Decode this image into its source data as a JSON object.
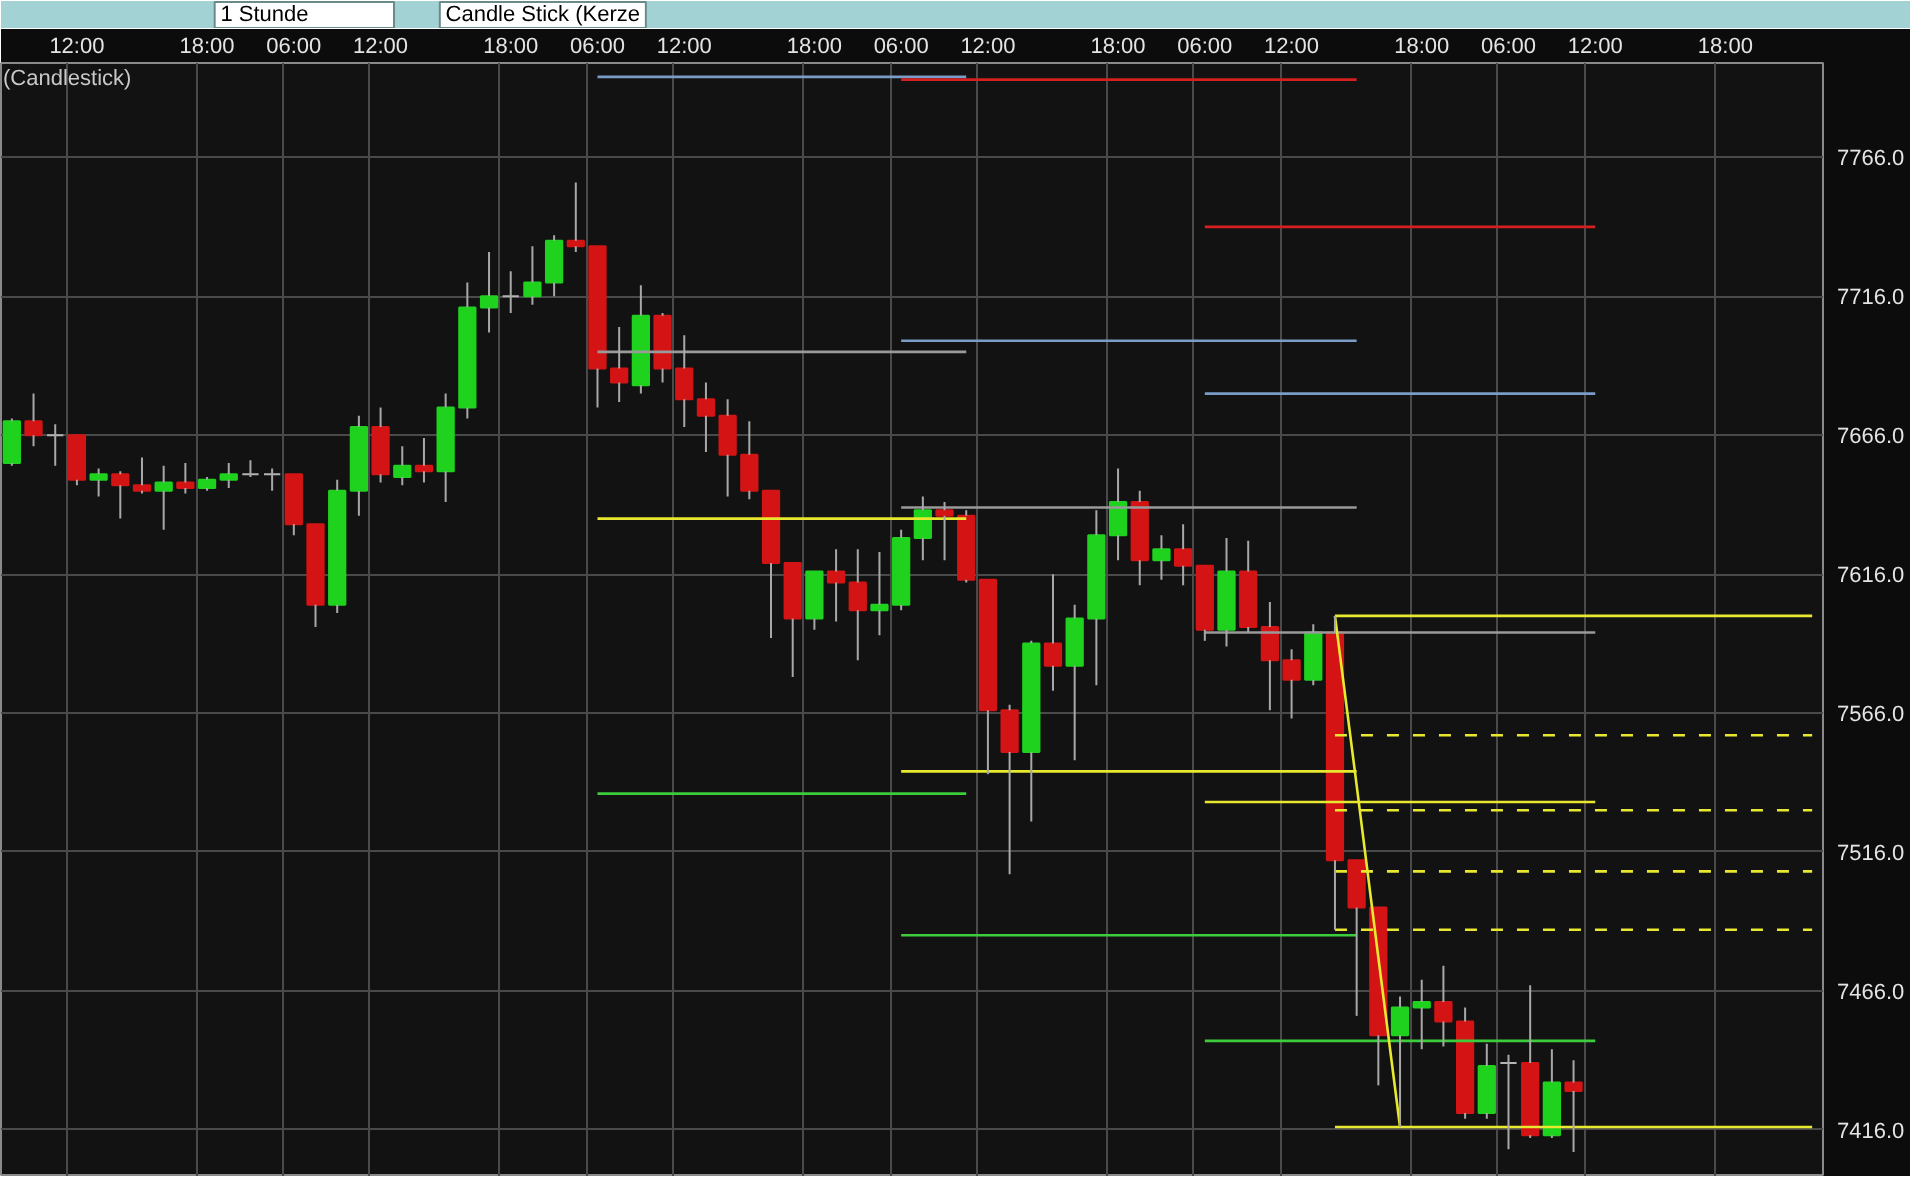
{
  "chart_data": {
    "type": "candlestick",
    "title": "(Candlestick)",
    "annotations": [
      "1 Stunde",
      "Candle Stick (Kerze"
    ],
    "categories": [
      null,
      null,
      null,
      "12:00",
      null,
      null,
      null,
      null,
      null,
      "18:00",
      null,
      null,
      null,
      "06:00",
      null,
      null,
      null,
      "12:00",
      null,
      null,
      null,
      null,
      null,
      "18:00",
      null,
      null,
      null,
      "06:00",
      null,
      null,
      null,
      "12:00",
      null,
      null,
      null,
      null,
      null,
      "18:00",
      null,
      null,
      null,
      "06:00",
      null,
      null,
      null,
      "12:00",
      null,
      null,
      null,
      null,
      null,
      "18:00",
      null,
      null,
      null,
      "06:00",
      null,
      null,
      null,
      "12:00",
      null,
      null,
      null,
      null,
      null,
      "18:00",
      null,
      null,
      null,
      "06:00",
      null,
      null,
      null,
      "12:00",
      null,
      null,
      null,
      null,
      null,
      "18:00",
      null,
      null,
      null,
      null
    ],
    "ohlc": [
      [
        7656,
        7672,
        7655,
        7671
      ],
      [
        7671,
        7681,
        7662,
        7666
      ],
      [
        7666,
        7670,
        7655,
        7666
      ],
      [
        7666,
        7666,
        7648,
        7650
      ],
      [
        7650,
        7654,
        7644,
        7652
      ],
      [
        7652,
        7653,
        7636,
        7648
      ],
      [
        7648,
        7658,
        7645,
        7646
      ],
      [
        7646,
        7655,
        7632,
        7649
      ],
      [
        7649,
        7656,
        7645,
        7647
      ],
      [
        7647,
        7651,
        7646,
        7650
      ],
      [
        7650,
        7656,
        7647,
        7652
      ],
      [
        7652,
        7657,
        7651,
        7652
      ],
      [
        7652,
        7654,
        7646,
        7652
      ],
      [
        7652,
        7652,
        7630,
        7634
      ],
      [
        7634,
        7634,
        7597,
        7605
      ],
      [
        7605,
        7650,
        7602,
        7646
      ],
      [
        7646,
        7673,
        7637,
        7669
      ],
      [
        7669,
        7676,
        7649,
        7652
      ],
      [
        7651,
        7662,
        7648,
        7655
      ],
      [
        7655,
        7665,
        7649,
        7653
      ],
      [
        7653,
        7681,
        7642,
        7676
      ],
      [
        7676,
        7721,
        7672,
        7712
      ],
      [
        7712,
        7732,
        7703,
        7716
      ],
      [
        7716,
        7725,
        7710,
        7716
      ],
      [
        7716,
        7734,
        7713,
        7721
      ],
      [
        7721,
        7738,
        7716,
        7736
      ],
      [
        7736,
        7757,
        7732,
        7734
      ],
      [
        7734,
        7734,
        7676,
        7690
      ],
      [
        7690,
        7705,
        7678,
        7685
      ],
      [
        7684,
        7720,
        7681,
        7709
      ],
      [
        7709,
        7710,
        7685,
        7690
      ],
      [
        7690,
        7702,
        7669,
        7679
      ],
      [
        7679,
        7685,
        7660,
        7673
      ],
      [
        7673,
        7679,
        7644,
        7659
      ],
      [
        7659,
        7671,
        7643,
        7646
      ],
      [
        7646,
        7646,
        7593,
        7620
      ],
      [
        7620,
        7620,
        7579,
        7600
      ],
      [
        7600,
        7617,
        7596,
        7617
      ],
      [
        7617,
        7625,
        7599,
        7613
      ],
      [
        7613,
        7625,
        7585,
        7603
      ],
      [
        7603,
        7624,
        7594,
        7605
      ],
      [
        7605,
        7632,
        7603,
        7629
      ],
      [
        7629,
        7644,
        7621,
        7639
      ],
      [
        7639,
        7642,
        7621,
        7637
      ],
      [
        7637,
        7639,
        7613,
        7614
      ],
      [
        7614,
        7614,
        7544,
        7567
      ],
      [
        7567,
        7569,
        7508,
        7552
      ],
      [
        7552,
        7592,
        7527,
        7591
      ],
      [
        7591,
        7616,
        7574,
        7583
      ],
      [
        7583,
        7605,
        7549,
        7600
      ],
      [
        7600,
        7639,
        7576,
        7630
      ],
      [
        7630,
        7654,
        7621,
        7642
      ],
      [
        7642,
        7646,
        7612,
        7621
      ],
      [
        7621,
        7630,
        7614,
        7625
      ],
      [
        7625,
        7634,
        7612,
        7619
      ],
      [
        7619,
        7619,
        7592,
        7596
      ],
      [
        7596,
        7629,
        7590,
        7617
      ],
      [
        7617,
        7628,
        7595,
        7597
      ],
      [
        7597,
        7606,
        7567,
        7585
      ],
      [
        7585,
        7589,
        7564,
        7578
      ],
      [
        7578,
        7598,
        7576,
        7595
      ],
      [
        7595,
        7601,
        7488,
        7513
      ],
      [
        7513,
        7513,
        7457,
        7496
      ],
      [
        7496,
        7496,
        7432,
        7450
      ],
      [
        7450,
        7464,
        7417,
        7460
      ],
      [
        7460,
        7470,
        7445,
        7462
      ],
      [
        7462,
        7475,
        7446,
        7455
      ],
      [
        7455,
        7460,
        7420,
        7422
      ],
      [
        7422,
        7447,
        7420,
        7439
      ],
      [
        7440,
        7443,
        7409,
        7440
      ],
      [
        7440,
        7468,
        7413,
        7414
      ],
      [
        7414,
        7445,
        7413,
        7433
      ],
      [
        7433,
        7441,
        7408,
        7430
      ],
      null,
      null,
      null,
      null,
      null,
      null,
      null,
      null,
      null,
      null,
      null
    ],
    "colors": [
      "#1ed21e",
      "#d41414",
      "#b4b4b4",
      "#d41414",
      "#1ed21e",
      "#d41414",
      "#d41414",
      "#1ed21e",
      "#d41414",
      "#1ed21e",
      "#1ed21e",
      "#b4b4b4",
      "#b4b4b4",
      "#d41414",
      "#d41414",
      "#1ed21e",
      "#1ed21e",
      "#d41414",
      "#1ed21e",
      "#d41414",
      "#1ed21e",
      "#1ed21e",
      "#1ed21e",
      "#b4b4b4",
      "#1ed21e",
      "#1ed21e",
      "#d41414",
      "#d41414",
      "#d41414",
      "#1ed21e",
      "#d41414",
      "#d41414",
      "#d41414",
      "#d41414",
      "#d41414",
      "#d41414",
      "#d41414",
      "#1ed21e",
      "#d41414",
      "#d41414",
      "#1ed21e",
      "#1ed21e",
      "#1ed21e",
      "#d41414",
      "#d41414",
      "#d41414",
      "#d41414",
      "#1ed21e",
      "#d41414",
      "#1ed21e",
      "#1ed21e",
      "#1ed21e",
      "#d41414",
      "#1ed21e",
      "#d41414",
      "#d41414",
      "#1ed21e",
      "#d41414",
      "#d41414",
      "#d41414",
      "#1ed21e",
      "#d41414",
      "#d41414",
      "#d41414",
      "#1ed21e",
      "#1ed21e",
      "#d41414",
      "#d41414",
      "#1ed21e",
      "#b4b4b4",
      "#d41414",
      "#1ed21e",
      "#d41414",
      null,
      null,
      null,
      null,
      null,
      null,
      null,
      null,
      null,
      null,
      null
    ],
    "series": [
      {
        "type": "line",
        "color": "#7a9cc6",
        "values": [
          null,
          null,
          null,
          null,
          null,
          null,
          null,
          null,
          null,
          null,
          null,
          null,
          null,
          null,
          null,
          null,
          null,
          null,
          null,
          null,
          null,
          null,
          null,
          null,
          null,
          null,
          null,
          7795,
          7795,
          7795,
          7795,
          7795,
          7795,
          7795,
          7795,
          7795,
          7795,
          7795,
          7795,
          7795,
          7795,
          7795,
          7795,
          7795,
          7795,
          null,
          null,
          null,
          null,
          null,
          null,
          null,
          null,
          null,
          null,
          null,
          null,
          null,
          null,
          null,
          null,
          null,
          null,
          null,
          null,
          null,
          null,
          null,
          null,
          null,
          null,
          null,
          null,
          null,
          null,
          null,
          null,
          null,
          null,
          null,
          null,
          null,
          null,
          null
        ]
      },
      {
        "type": "line",
        "color": "#9a9a9a",
        "values": [
          null,
          null,
          null,
          null,
          null,
          null,
          null,
          null,
          null,
          null,
          null,
          null,
          null,
          null,
          null,
          null,
          null,
          null,
          null,
          null,
          null,
          null,
          null,
          null,
          null,
          null,
          null,
          7696,
          7696,
          7696,
          7696,
          7696,
          7696,
          7696,
          7696,
          7696,
          7696,
          7696,
          7696,
          7696,
          7696,
          7696,
          7696,
          7696,
          7696,
          null,
          null,
          null,
          null,
          null,
          null,
          null,
          null,
          null,
          null,
          null,
          null,
          null,
          null,
          null,
          null,
          null,
          null,
          null,
          null,
          null,
          null,
          null,
          null,
          null,
          null,
          null,
          null,
          null,
          null,
          null,
          null,
          null,
          null,
          null,
          null,
          null,
          null,
          null
        ]
      },
      {
        "type": "line",
        "color": "#e8e830",
        "values": [
          null,
          null,
          null,
          null,
          null,
          null,
          null,
          null,
          null,
          null,
          null,
          null,
          null,
          null,
          null,
          null,
          null,
          null,
          null,
          null,
          null,
          null,
          null,
          null,
          null,
          null,
          null,
          7636,
          7636,
          7636,
          7636,
          7636,
          7636,
          7636,
          7636,
          7636,
          7636,
          7636,
          7636,
          7636,
          7636,
          7636,
          7636,
          7636,
          7636,
          null,
          null,
          null,
          null,
          null,
          null,
          null,
          null,
          null,
          null,
          null,
          null,
          null,
          null,
          null,
          null,
          null,
          null,
          null,
          null,
          null,
          null,
          null,
          null,
          null,
          null,
          null,
          null,
          null,
          null,
          null,
          null,
          null,
          null,
          null,
          null,
          null,
          null,
          null
        ]
      },
      {
        "type": "line",
        "color": "#3ccc3c",
        "values": [
          null,
          null,
          null,
          null,
          null,
          null,
          null,
          null,
          null,
          null,
          null,
          null,
          null,
          null,
          null,
          null,
          null,
          null,
          null,
          null,
          null,
          null,
          null,
          null,
          null,
          null,
          null,
          7537,
          7537,
          7537,
          7537,
          7537,
          7537,
          7537,
          7537,
          7537,
          7537,
          7537,
          7537,
          7537,
          7537,
          7537,
          7537,
          7537,
          7537,
          null,
          null,
          null,
          null,
          null,
          null,
          null,
          null,
          null,
          null,
          null,
          null,
          null,
          null,
          null,
          null,
          null,
          null,
          null,
          null,
          null,
          null,
          null,
          null,
          null,
          null,
          null,
          null,
          null,
          null,
          null,
          null,
          null,
          null,
          null,
          null,
          null,
          null,
          null
        ]
      },
      {
        "type": "line",
        "color": "#d42020",
        "values": [
          null,
          null,
          null,
          null,
          null,
          null,
          null,
          null,
          null,
          null,
          null,
          null,
          null,
          null,
          null,
          null,
          null,
          null,
          null,
          null,
          null,
          null,
          null,
          null,
          null,
          null,
          null,
          null,
          null,
          null,
          null,
          null,
          null,
          null,
          null,
          null,
          null,
          null,
          null,
          null,
          null,
          7794,
          7794,
          7794,
          7794,
          7794,
          7794,
          7794,
          7794,
          7794,
          7794,
          7794,
          7794,
          7794,
          7794,
          7794,
          7794,
          7794,
          7794,
          7794,
          7794,
          7794,
          7794,
          null,
          null,
          null,
          null,
          null,
          null,
          null,
          null,
          null,
          null,
          null,
          null,
          null,
          null,
          null,
          null,
          null,
          null,
          null,
          null,
          null
        ]
      },
      {
        "type": "line",
        "color": "#7a9cc6",
        "values": [
          null,
          null,
          null,
          null,
          null,
          null,
          null,
          null,
          null,
          null,
          null,
          null,
          null,
          null,
          null,
          null,
          null,
          null,
          null,
          null,
          null,
          null,
          null,
          null,
          null,
          null,
          null,
          null,
          null,
          null,
          null,
          null,
          null,
          null,
          null,
          null,
          null,
          null,
          null,
          null,
          null,
          7700,
          7700,
          7700,
          7700,
          7700,
          7700,
          7700,
          7700,
          7700,
          7700,
          7700,
          7700,
          7700,
          7700,
          7700,
          7700,
          7700,
          7700,
          7700,
          7700,
          7700,
          7700,
          null,
          null,
          null,
          null,
          null,
          null,
          null,
          null,
          null,
          null,
          null,
          null,
          null,
          null,
          null,
          null,
          null,
          null,
          null,
          null,
          null
        ]
      },
      {
        "type": "line",
        "color": "#9a9a9a",
        "values": [
          null,
          null,
          null,
          null,
          null,
          null,
          null,
          null,
          null,
          null,
          null,
          null,
          null,
          null,
          null,
          null,
          null,
          null,
          null,
          null,
          null,
          null,
          null,
          null,
          null,
          null,
          null,
          null,
          null,
          null,
          null,
          null,
          null,
          null,
          null,
          null,
          null,
          null,
          null,
          null,
          null,
          7640,
          7640,
          7640,
          7640,
          7640,
          7640,
          7640,
          7640,
          7640,
          7640,
          7640,
          7640,
          7640,
          7640,
          7640,
          7640,
          7640,
          7640,
          7640,
          7640,
          7640,
          7640,
          null,
          null,
          null,
          null,
          null,
          null,
          null,
          null,
          null,
          null,
          null,
          null,
          null,
          null,
          null,
          null,
          null,
          null,
          null,
          null,
          null
        ]
      },
      {
        "type": "line",
        "color": "#e8e830",
        "values": [
          null,
          null,
          null,
          null,
          null,
          null,
          null,
          null,
          null,
          null,
          null,
          null,
          null,
          null,
          null,
          null,
          null,
          null,
          null,
          null,
          null,
          null,
          null,
          null,
          null,
          null,
          null,
          null,
          null,
          null,
          null,
          null,
          null,
          null,
          null,
          null,
          null,
          null,
          null,
          null,
          null,
          7545,
          7545,
          7545,
          7545,
          7545,
          7545,
          7545,
          7545,
          7545,
          7545,
          7545,
          7545,
          7545,
          7545,
          7545,
          7545,
          7545,
          7545,
          7545,
          7545,
          7545,
          7545,
          null,
          null,
          null,
          null,
          null,
          null,
          null,
          null,
          null,
          null,
          null,
          null,
          null,
          null,
          null,
          null,
          null,
          null,
          null,
          null,
          null
        ]
      },
      {
        "type": "line",
        "color": "#3ccc3c",
        "values": [
          null,
          null,
          null,
          null,
          null,
          null,
          null,
          null,
          null,
          null,
          null,
          null,
          null,
          null,
          null,
          null,
          null,
          null,
          null,
          null,
          null,
          null,
          null,
          null,
          null,
          null,
          null,
          null,
          null,
          null,
          null,
          null,
          null,
          null,
          null,
          null,
          null,
          null,
          null,
          null,
          null,
          7486,
          7486,
          7486,
          7486,
          7486,
          7486,
          7486,
          7486,
          7486,
          7486,
          7486,
          7486,
          7486,
          7486,
          7486,
          7486,
          7486,
          7486,
          7486,
          7486,
          7486,
          7486,
          null,
          null,
          null,
          null,
          null,
          null,
          null,
          null,
          null,
          null,
          null,
          null,
          null,
          null,
          null,
          null,
          null,
          null,
          null,
          null,
          null
        ]
      },
      {
        "type": "line",
        "color": "#d42020",
        "values": [
          null,
          null,
          null,
          null,
          null,
          null,
          null,
          null,
          null,
          null,
          null,
          null,
          null,
          null,
          null,
          null,
          null,
          null,
          null,
          null,
          null,
          null,
          null,
          null,
          null,
          null,
          null,
          null,
          null,
          null,
          null,
          null,
          null,
          null,
          null,
          null,
          null,
          null,
          null,
          null,
          null,
          null,
          null,
          null,
          null,
          null,
          null,
          null,
          null,
          null,
          null,
          null,
          null,
          null,
          null,
          7741,
          7741,
          7741,
          7741,
          7741,
          7741,
          7741,
          7741,
          7741,
          7741,
          7741,
          7741,
          7741,
          7741,
          7741,
          7741,
          7741,
          7741,
          7741,
          null,
          null,
          null,
          null,
          null,
          null,
          null,
          null,
          null,
          null
        ]
      },
      {
        "type": "line",
        "color": "#7a9cc6",
        "values": [
          null,
          null,
          null,
          null,
          null,
          null,
          null,
          null,
          null,
          null,
          null,
          null,
          null,
          null,
          null,
          null,
          null,
          null,
          null,
          null,
          null,
          null,
          null,
          null,
          null,
          null,
          null,
          null,
          null,
          null,
          null,
          null,
          null,
          null,
          null,
          null,
          null,
          null,
          null,
          null,
          null,
          null,
          null,
          null,
          null,
          null,
          null,
          null,
          null,
          null,
          null,
          null,
          null,
          null,
          null,
          7681,
          7681,
          7681,
          7681,
          7681,
          7681,
          7681,
          7681,
          7681,
          7681,
          7681,
          7681,
          7681,
          7681,
          7681,
          7681,
          7681,
          7681,
          7681,
          null,
          null,
          null,
          null,
          null,
          null,
          null,
          null,
          null,
          null
        ]
      },
      {
        "type": "line",
        "color": "#9a9a9a",
        "values": [
          null,
          null,
          null,
          null,
          null,
          null,
          null,
          null,
          null,
          null,
          null,
          null,
          null,
          null,
          null,
          null,
          null,
          null,
          null,
          null,
          null,
          null,
          null,
          null,
          null,
          null,
          null,
          null,
          null,
          null,
          null,
          null,
          null,
          null,
          null,
          null,
          null,
          null,
          null,
          null,
          null,
          null,
          null,
          null,
          null,
          null,
          null,
          null,
          null,
          null,
          null,
          null,
          null,
          null,
          null,
          7595,
          7595,
          7595,
          7595,
          7595,
          7595,
          7595,
          7595,
          7595,
          7595,
          7595,
          7595,
          7595,
          7595,
          7595,
          7595,
          7595,
          7595,
          7595,
          null,
          null,
          null,
          null,
          null,
          null,
          null,
          null,
          null,
          null
        ]
      },
      {
        "type": "line",
        "color": "#e8e830",
        "values": [
          null,
          null,
          null,
          null,
          null,
          null,
          null,
          null,
          null,
          null,
          null,
          null,
          null,
          null,
          null,
          null,
          null,
          null,
          null,
          null,
          null,
          null,
          null,
          null,
          null,
          null,
          null,
          null,
          null,
          null,
          null,
          null,
          null,
          null,
          null,
          null,
          null,
          null,
          null,
          null,
          null,
          null,
          null,
          null,
          null,
          null,
          null,
          null,
          null,
          null,
          null,
          null,
          null,
          null,
          null,
          7534,
          7534,
          7534,
          7534,
          7534,
          7534,
          7534,
          7534,
          7534,
          7534,
          7534,
          7534,
          7534,
          7534,
          7534,
          7534,
          7534,
          7534,
          7534,
          null,
          null,
          null,
          null,
          null,
          null,
          null,
          null,
          null,
          null
        ]
      },
      {
        "type": "line",
        "color": "#3ccc3c",
        "values": [
          null,
          null,
          null,
          null,
          null,
          null,
          null,
          null,
          null,
          null,
          null,
          null,
          null,
          null,
          null,
          null,
          null,
          null,
          null,
          null,
          null,
          null,
          null,
          null,
          null,
          null,
          null,
          null,
          null,
          null,
          null,
          null,
          null,
          null,
          null,
          null,
          null,
          null,
          null,
          null,
          null,
          null,
          null,
          null,
          null,
          null,
          null,
          null,
          null,
          null,
          null,
          null,
          null,
          null,
          null,
          7448,
          7448,
          7448,
          7448,
          7448,
          7448,
          7448,
          7448,
          7448,
          7448,
          7448,
          7448,
          7448,
          7448,
          7448,
          7448,
          7448,
          7448,
          7448,
          null,
          null,
          null,
          null,
          null,
          null,
          null,
          null,
          null,
          null
        ]
      },
      {
        "type": "line",
        "color": "#e8e830",
        "values": [
          null,
          null,
          null,
          null,
          null,
          null,
          null,
          null,
          null,
          null,
          null,
          null,
          null,
          null,
          null,
          null,
          null,
          null,
          null,
          null,
          null,
          null,
          null,
          null,
          null,
          null,
          null,
          null,
          null,
          null,
          null,
          null,
          null,
          null,
          null,
          null,
          null,
          null,
          null,
          null,
          null,
          null,
          null,
          null,
          null,
          null,
          null,
          null,
          null,
          null,
          null,
          null,
          null,
          null,
          null,
          null,
          null,
          null,
          null,
          null,
          null,
          7601,
          7601,
          7601,
          7601,
          7601,
          7601,
          7601,
          7601,
          7601,
          7601,
          7601,
          7601,
          7601,
          7601,
          7601,
          7601,
          7601,
          7601,
          7601,
          7601,
          7601,
          7601,
          7601
        ]
      },
      {
        "type": "line",
        "color": "#e8e830",
        "line_style": "dashed",
        "values": [
          null,
          null,
          null,
          null,
          null,
          null,
          null,
          null,
          null,
          null,
          null,
          null,
          null,
          null,
          null,
          null,
          null,
          null,
          null,
          null,
          null,
          null,
          null,
          null,
          null,
          null,
          null,
          null,
          null,
          null,
          null,
          null,
          null,
          null,
          null,
          null,
          null,
          null,
          null,
          null,
          null,
          null,
          null,
          null,
          null,
          null,
          null,
          null,
          null,
          null,
          null,
          null,
          null,
          null,
          null,
          null,
          null,
          null,
          null,
          null,
          null,
          7558,
          7558,
          7558,
          7558,
          7558,
          7558,
          7558,
          7558,
          7558,
          7558,
          7558,
          7558,
          7558,
          7558,
          7558,
          7558,
          7558,
          7558,
          7558,
          7558,
          7558,
          7558,
          7558
        ]
      },
      {
        "type": "line",
        "color": "#e8e830",
        "line_style": "dashed",
        "values": [
          null,
          null,
          null,
          null,
          null,
          null,
          null,
          null,
          null,
          null,
          null,
          null,
          null,
          null,
          null,
          null,
          null,
          null,
          null,
          null,
          null,
          null,
          null,
          null,
          null,
          null,
          null,
          null,
          null,
          null,
          null,
          null,
          null,
          null,
          null,
          null,
          null,
          null,
          null,
          null,
          null,
          null,
          null,
          null,
          null,
          null,
          null,
          null,
          null,
          null,
          null,
          null,
          null,
          null,
          null,
          null,
          null,
          null,
          null,
          null,
          null,
          7531,
          7531,
          7531,
          7531,
          7531,
          7531,
          7531,
          7531,
          7531,
          7531,
          7531,
          7531,
          7531,
          7531,
          7531,
          7531,
          7531,
          7531,
          7531,
          7531,
          7531,
          7531,
          7531
        ]
      },
      {
        "type": "line",
        "color": "#e8e830",
        "line_style": "dashed",
        "values": [
          null,
          null,
          null,
          null,
          null,
          null,
          null,
          null,
          null,
          null,
          null,
          null,
          null,
          null,
          null,
          null,
          null,
          null,
          null,
          null,
          null,
          null,
          null,
          null,
          null,
          null,
          null,
          null,
          null,
          null,
          null,
          null,
          null,
          null,
          null,
          null,
          null,
          null,
          null,
          null,
          null,
          null,
          null,
          null,
          null,
          null,
          null,
          null,
          null,
          null,
          null,
          null,
          null,
          null,
          null,
          null,
          null,
          null,
          null,
          null,
          null,
          7509,
          7509,
          7509,
          7509,
          7509,
          7509,
          7509,
          7509,
          7509,
          7509,
          7509,
          7509,
          7509,
          7509,
          7509,
          7509,
          7509,
          7509,
          7509,
          7509,
          7509,
          7509,
          7509
        ]
      },
      {
        "type": "line",
        "color": "#e8e830",
        "line_style": "dashed",
        "values": [
          null,
          null,
          null,
          null,
          null,
          null,
          null,
          null,
          null,
          null,
          null,
          null,
          null,
          null,
          null,
          null,
          null,
          null,
          null,
          null,
          null,
          null,
          null,
          null,
          null,
          null,
          null,
          null,
          null,
          null,
          null,
          null,
          null,
          null,
          null,
          null,
          null,
          null,
          null,
          null,
          null,
          null,
          null,
          null,
          null,
          null,
          null,
          null,
          null,
          null,
          null,
          null,
          null,
          null,
          null,
          null,
          null,
          null,
          null,
          null,
          null,
          7488,
          7488,
          7488,
          7488,
          7488,
          7488,
          7488,
          7488,
          7488,
          7488,
          7488,
          7488,
          7488,
          7488,
          7488,
          7488,
          7488,
          7488,
          7488,
          7488,
          7488,
          7488,
          7488
        ]
      },
      {
        "type": "line",
        "color": "#e8e830",
        "values": [
          null,
          null,
          null,
          null,
          null,
          null,
          null,
          null,
          null,
          null,
          null,
          null,
          null,
          null,
          null,
          null,
          null,
          null,
          null,
          null,
          null,
          null,
          null,
          null,
          null,
          null,
          null,
          null,
          null,
          null,
          null,
          null,
          null,
          null,
          null,
          null,
          null,
          null,
          null,
          null,
          null,
          null,
          null,
          null,
          null,
          null,
          null,
          null,
          null,
          null,
          null,
          null,
          null,
          null,
          null,
          null,
          null,
          null,
          null,
          null,
          null,
          7417,
          7417,
          7417,
          7417,
          7417,
          7417,
          7417,
          7417,
          7417,
          7417,
          7417,
          7417,
          7417,
          7417,
          7417,
          7417,
          7417,
          7417,
          7417,
          7417,
          7417,
          7417,
          7417
        ]
      },
      {
        "type": "line",
        "color": "#e8e830",
        "values": [
          null,
          null,
          null,
          null,
          null,
          null,
          null,
          null,
          null,
          null,
          null,
          null,
          null,
          null,
          null,
          null,
          null,
          null,
          null,
          null,
          null,
          null,
          null,
          null,
          null,
          null,
          null,
          null,
          null,
          null,
          null,
          null,
          null,
          null,
          null,
          null,
          null,
          null,
          null,
          null,
          null,
          null,
          null,
          null,
          null,
          null,
          null,
          null,
          null,
          null,
          null,
          null,
          null,
          null,
          null,
          null,
          null,
          null,
          null,
          null,
          null,
          7601,
          7540,
          7478,
          7417,
          null,
          null,
          null,
          null,
          null,
          null,
          null,
          null,
          null,
          null,
          null,
          null,
          null,
          null,
          null,
          null,
          null,
          null,
          null
        ]
      }
    ],
    "ylim": [
      7399,
      7800
    ],
    "yticks": [
      {
        "value": 7416,
        "label": "7416.0"
      },
      {
        "value": 7466,
        "label": "7466.0"
      },
      {
        "value": 7516,
        "label": "7516.0"
      },
      {
        "value": 7566,
        "label": "7566.0"
      },
      {
        "value": 7616,
        "label": "7616.0"
      },
      {
        "value": 7666,
        "label": "7666.0"
      },
      {
        "value": 7716,
        "label": "7716.0"
      },
      {
        "value": 7766,
        "label": "7766.0"
      }
    ],
    "grid": true
  }
}
